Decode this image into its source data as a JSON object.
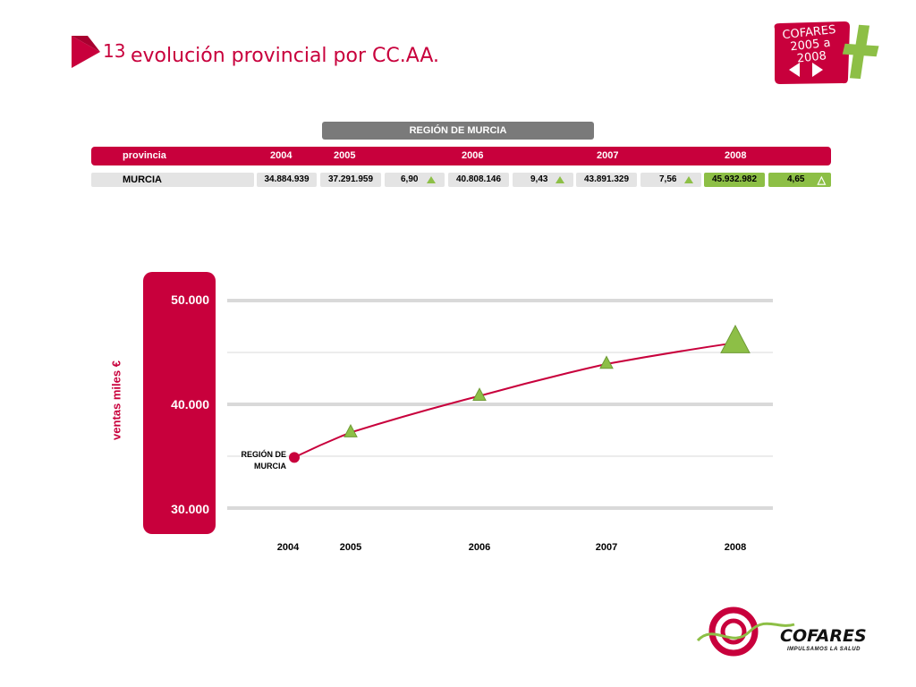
{
  "header": {
    "slide_number": "13",
    "title": "evolución provincial por CC.AA.",
    "badge_line1": "COFARES",
    "badge_line2": "2005 a 2008"
  },
  "table": {
    "region": "REGIÓN DE MURCIA",
    "province_header": "provincia",
    "years": [
      "2004",
      "2005",
      "2006",
      "2007",
      "2008"
    ],
    "row": {
      "name": "MURCIA",
      "v2004": "34.884.939",
      "v2005": "37.291.959",
      "p2005": "6,90",
      "v2006": "40.808.146",
      "p2006": "9,43",
      "v2007": "43.891.329",
      "p2007": "7,56",
      "v2008": "45.932.982",
      "p2008": "4,65"
    }
  },
  "chart_data": {
    "type": "line",
    "ylabel": "ventas miles €",
    "yticks": [
      "50.000",
      "40.000",
      "30.000"
    ],
    "ylim": [
      30000,
      50000
    ],
    "x": [
      "2004",
      "2005",
      "2006",
      "2007",
      "2008"
    ],
    "series": [
      {
        "name": "REGIÓN DE MURCIA",
        "values": [
          34885,
          37292,
          40808,
          43891,
          45933
        ]
      }
    ],
    "grid": true,
    "colors": {
      "line": "#c8003c",
      "marker": "#8dbf46"
    }
  },
  "logo": {
    "brand": "COFARES",
    "tagline": "IMPULSAMOS LA SALUD"
  },
  "colors": {
    "accent": "#c8003c",
    "green": "#8dbf46",
    "grey": "#7a7a7a"
  }
}
